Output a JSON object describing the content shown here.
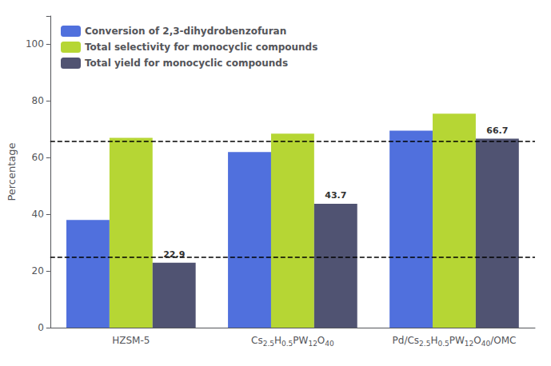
{
  "chart_data": {
    "type": "bar",
    "categories": [
      "HZSM-5",
      "Cs2.5H0.5PW12O40",
      "Pd/Cs2.5H0.5PW12O40/OMC"
    ],
    "series": [
      {
        "name": "Conversion of 2,3-dihydrobenzofuran",
        "values": [
          38.0,
          62.0,
          69.5
        ]
      },
      {
        "name": "Total selectivity for monocyclic compounds",
        "values": [
          67.0,
          68.5,
          75.5
        ]
      },
      {
        "name": "Total yield for monocyclic compounds",
        "values": [
          22.9,
          43.7,
          66.7
        ],
        "data_labels": true
      }
    ],
    "hlines": [
      65.8,
      25.0
    ],
    "ylabel": "Percentage",
    "ylim": [
      0,
      110
    ],
    "yticks": [
      0,
      20,
      40,
      60,
      80,
      100
    ],
    "legend": "upper left",
    "grid": false
  }
}
